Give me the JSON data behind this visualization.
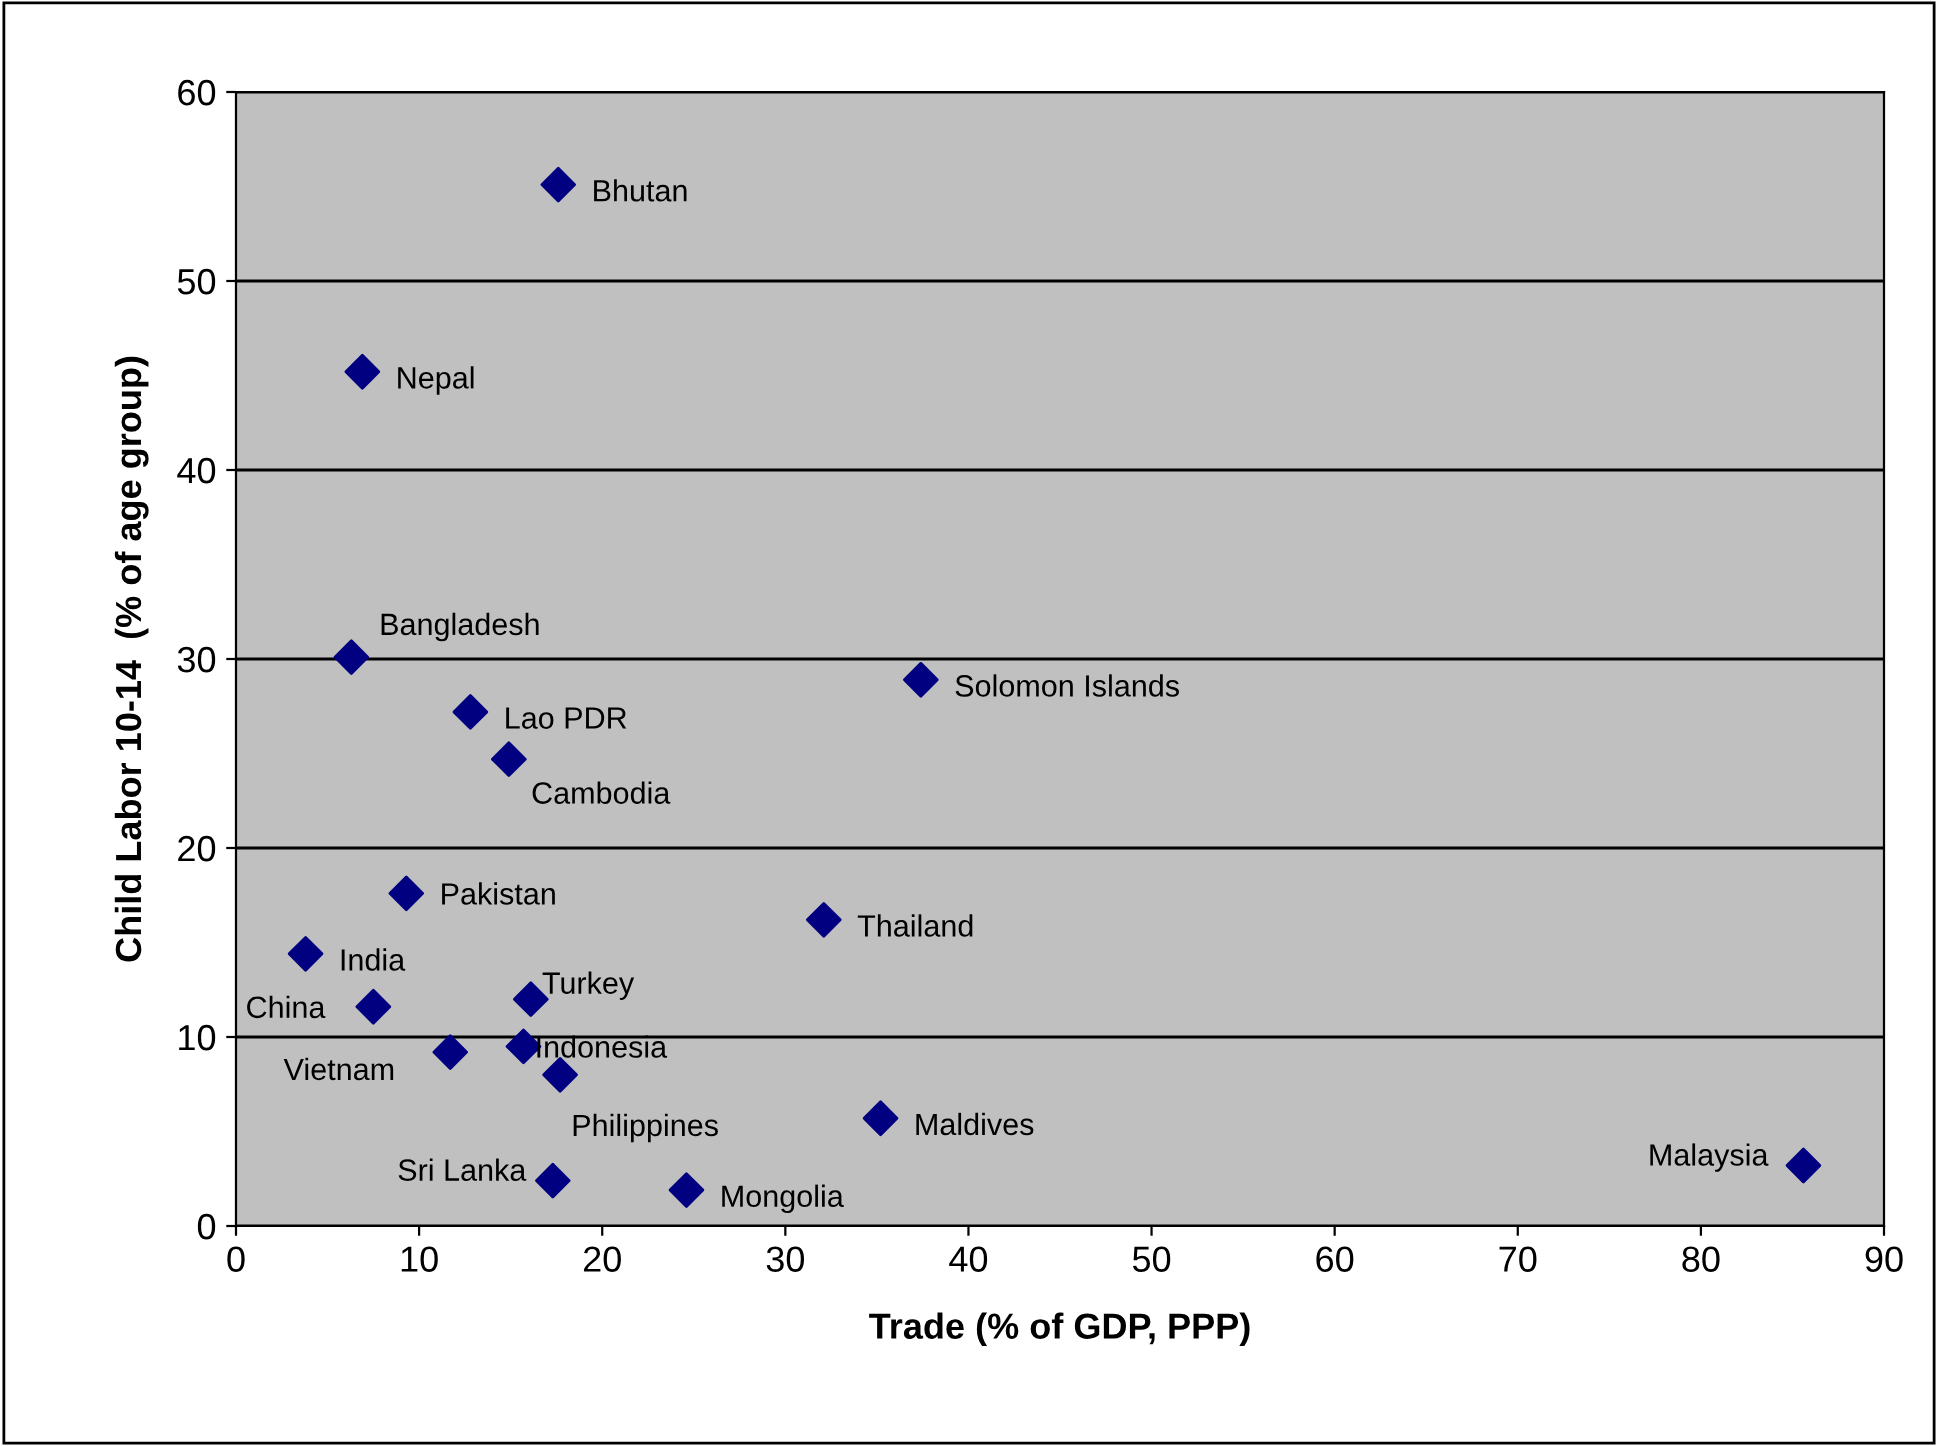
{
  "chart_data": {
    "type": "scatter",
    "xlabel": "Trade (% of GDP, PPP)",
    "ylabel": "Child Labor 10-14  (% of age group)",
    "x": [
      17.6,
      6.9,
      6.3,
      12.8,
      14.9,
      37.4,
      9.3,
      32.1,
      3.8,
      7.5,
      16.1,
      11.7,
      15.7,
      17.7,
      35.2,
      85.6,
      17.3,
      24.6
    ],
    "series": [
      {
        "color": "#000080",
        "values": [
          55.1,
          45.2,
          30.1,
          27.2,
          24.7,
          28.9,
          17.6,
          16.2,
          14.4,
          11.6,
          12.0,
          9.2,
          9.5,
          8.0,
          5.7,
          3.2,
          2.4,
          1.9
        ]
      }
    ],
    "annotations": [
      {
        "text": "Bhutan",
        "x": 17.6,
        "y": 55.1
      },
      {
        "text": "Nepal",
        "x": 6.9,
        "y": 45.2
      },
      {
        "text": "Bangladesh",
        "x": 6.3,
        "y": 30.1
      },
      {
        "text": "Lao PDR",
        "x": 12.8,
        "y": 27.2
      },
      {
        "text": "Cambodia",
        "x": 14.9,
        "y": 24.7
      },
      {
        "text": "Solomon Islands",
        "x": 37.4,
        "y": 28.9
      },
      {
        "text": "Pakistan",
        "x": 9.3,
        "y": 17.6
      },
      {
        "text": "Thailand",
        "x": 32.1,
        "y": 16.2
      },
      {
        "text": "India",
        "x": 3.8,
        "y": 14.4
      },
      {
        "text": "China",
        "x": 7.5,
        "y": 11.6
      },
      {
        "text": "Turkey",
        "x": 16.1,
        "y": 12.0
      },
      {
        "text": "Vietnam",
        "x": 11.7,
        "y": 9.2
      },
      {
        "text": "Indonesia",
        "x": 15.7,
        "y": 9.5
      },
      {
        "text": "Philippines",
        "x": 17.7,
        "y": 8.0
      },
      {
        "text": "Maldives",
        "x": 35.2,
        "y": 5.7
      },
      {
        "text": "Malaysia",
        "x": 85.6,
        "y": 3.2
      },
      {
        "text": "Sri Lanka",
        "x": 17.3,
        "y": 2.4
      },
      {
        "text": "Mongolia",
        "x": 24.6,
        "y": 1.9
      }
    ],
    "xlim": [
      0,
      90
    ],
    "xticks": [
      0,
      10,
      20,
      30,
      40,
      50,
      60,
      70,
      80,
      90
    ],
    "ylim": [
      0,
      60
    ],
    "yticks": [
      0,
      10,
      20,
      30,
      40,
      50,
      60
    ],
    "grid": "y",
    "marker": "diamond",
    "legend": false
  }
}
